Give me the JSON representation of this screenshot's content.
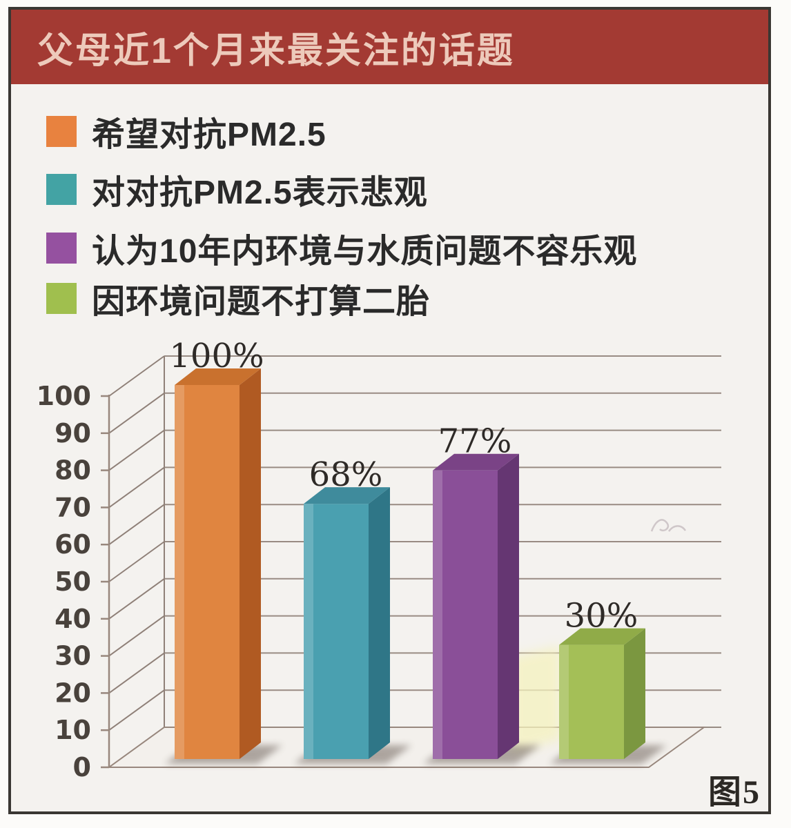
{
  "title": {
    "text": "父母近1个月来最关注的话题"
  },
  "figure": {
    "label": "图5"
  },
  "legend": {
    "position": "top-left",
    "items": [
      {
        "label": "希望对抗PM2.5",
        "color": "#e8823f"
      },
      {
        "label": "对对抗PM2.5表示悲观",
        "color": "#43a3a4"
      },
      {
        "label": "认为10年内环境与水质问题不容乐观",
        "color": "#9551a0"
      },
      {
        "label": "因环境问题不打算二胎",
        "color": "#a0bf4e"
      }
    ]
  },
  "chart_data": {
    "type": "bar",
    "style": "3d-column",
    "title": "父母近1个月来最关注的话题",
    "categories": [
      "希望对抗PM2.5",
      "对对抗PM2.5表示悲观",
      "认为10年内环境与水质问题不容乐观",
      "因环境问题不打算二胎"
    ],
    "values": [
      100,
      68,
      77,
      30
    ],
    "value_labels": [
      "100%",
      "68%",
      "77%",
      "30%"
    ],
    "unit": "%",
    "ylim": [
      0,
      100
    ],
    "yticks": [
      0,
      10,
      20,
      30,
      40,
      50,
      60,
      70,
      80,
      90,
      100
    ],
    "grid": true,
    "legend_position": "top-left",
    "bar_colors": [
      {
        "front": "#e08540",
        "side": "#b05a22",
        "top": "#c9712e"
      },
      {
        "front": "#4aa0b0",
        "side": "#2f7687",
        "top": "#3f8b9c"
      },
      {
        "front": "#8a4f98",
        "side": "#653672",
        "top": "#7a4386"
      },
      {
        "front": "#a4bf57",
        "side": "#7b9740",
        "top": "#90ab48"
      }
    ]
  },
  "colors": {
    "frame_border": "#3a3733",
    "background": "#f4f2ef",
    "title_bg": "#a33a33",
    "title_text": "#edcabb",
    "grid_line": "#8f8078",
    "axis_line": "#98877d",
    "axis_text": "#49423c",
    "value_label_text": "#2e2a27",
    "floor_fill": "#f3f0ec"
  }
}
